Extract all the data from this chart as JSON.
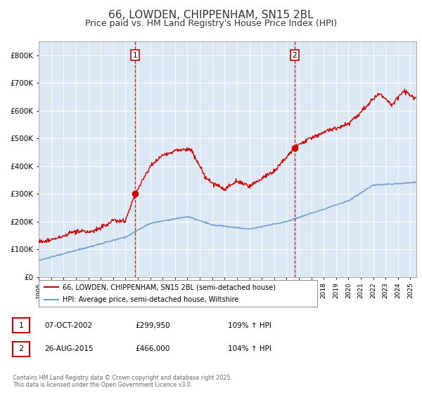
{
  "title": "66, LOWDEN, CHIPPENHAM, SN15 2BL",
  "subtitle": "Price paid vs. HM Land Registry's House Price Index (HPI)",
  "title_fontsize": 11,
  "subtitle_fontsize": 9,
  "background_color": "#ffffff",
  "plot_bg_color": "#dce9f5",
  "grid_color": "#ffffff",
  "red_line_color": "#cc0000",
  "blue_line_color": "#6699cc",
  "dashed_line_color": "#cc0000",
  "ylim": [
    0,
    850000
  ],
  "yticks": [
    0,
    100000,
    200000,
    300000,
    400000,
    500000,
    600000,
    700000,
    800000
  ],
  "ytick_labels": [
    "£0",
    "£100K",
    "£200K",
    "£300K",
    "£400K",
    "£500K",
    "£600K",
    "£700K",
    "£800K"
  ],
  "transaction1_x": 2002.77,
  "transaction1_y": 299950,
  "transaction1_label": "1",
  "transaction2_x": 2015.65,
  "transaction2_y": 466000,
  "transaction2_label": "2",
  "legend_line1": "66, LOWDEN, CHIPPENHAM, SN15 2BL (semi-detached house)",
  "legend_line2": "HPI: Average price, semi-detached house, Wiltshire",
  "annotation1_date": "07-OCT-2002",
  "annotation1_price": "£299,950",
  "annotation1_hpi": "109% ↑ HPI",
  "annotation2_date": "26-AUG-2015",
  "annotation2_price": "£466,000",
  "annotation2_hpi": "104% ↑ HPI",
  "footer": "Contains HM Land Registry data © Crown copyright and database right 2025.\nThis data is licensed under the Open Government Licence v3.0.",
  "xmin": 1995.0,
  "xmax": 2025.5
}
